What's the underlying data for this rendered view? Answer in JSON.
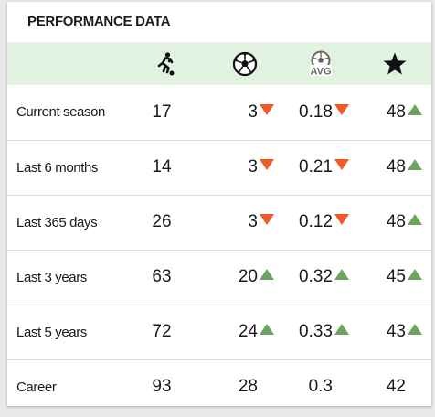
{
  "panel": {
    "title": "PERFORMANCE DATA"
  },
  "columns": {
    "appearances_icon": "player-running-icon",
    "goals_icon": "soccer-ball-icon",
    "avg_icon": "ball-avg-icon",
    "avg_label": "AVG",
    "rating_icon": "star-icon"
  },
  "colors": {
    "header_bg": "#e2f2e1",
    "trend_down": "#f05a28",
    "trend_up": "#6aa55e"
  },
  "rows": [
    {
      "label": "Current season",
      "apps": "17",
      "goals": "3",
      "goals_trend": "down",
      "avg": "0.18",
      "avg_trend": "down",
      "rating": "48",
      "rating_trend": "up"
    },
    {
      "label": "Last 6 months",
      "apps": "14",
      "goals": "3",
      "goals_trend": "down",
      "avg": "0.21",
      "avg_trend": "down",
      "rating": "48",
      "rating_trend": "up"
    },
    {
      "label": "Last 365 days",
      "apps": "26",
      "goals": "3",
      "goals_trend": "down",
      "avg": "0.12",
      "avg_trend": "down",
      "rating": "48",
      "rating_trend": "up"
    },
    {
      "label": "Last 3 years",
      "apps": "63",
      "goals": "20",
      "goals_trend": "up",
      "avg": "0.32",
      "avg_trend": "up",
      "rating": "45",
      "rating_trend": "up"
    },
    {
      "label": "Last 5 years",
      "apps": "72",
      "goals": "24",
      "goals_trend": "up",
      "avg": "0.33",
      "avg_trend": "up",
      "rating": "43",
      "rating_trend": "up"
    },
    {
      "label": "Career",
      "apps": "93",
      "goals": "28",
      "goals_trend": "none",
      "avg": "0.3",
      "avg_trend": "none",
      "rating": "42",
      "rating_trend": "none"
    }
  ]
}
